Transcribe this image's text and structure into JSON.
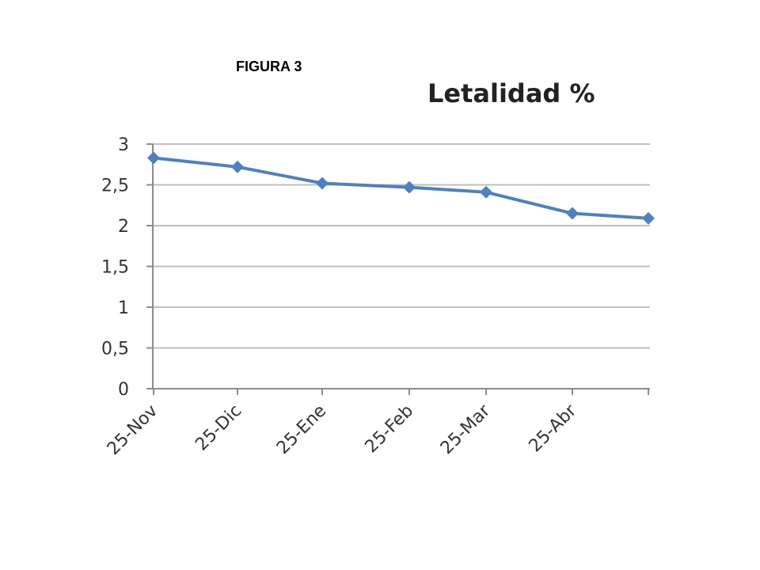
{
  "figure_label": "FIGURA 3",
  "chart_data": {
    "type": "line",
    "title": "Letalidad %",
    "x_tick_labels": [
      "25-Nov",
      "25-Dic",
      "25-Ene",
      "25-Feb",
      "25-Mar",
      "25-Abr"
    ],
    "y_tick_labels": [
      "0",
      "0,5",
      "1",
      "1,5",
      "2",
      "2,5",
      "3"
    ],
    "ylim": [
      0,
      3
    ],
    "grid": true,
    "series": [
      {
        "values": [
          2.83,
          2.72,
          2.52,
          2.47,
          2.41,
          2.15,
          2.09
        ],
        "color": "#4f81bd",
        "marker": "diamond"
      }
    ],
    "axis_color": "#8c8c8c",
    "grid_color": "#bfbfbf"
  }
}
